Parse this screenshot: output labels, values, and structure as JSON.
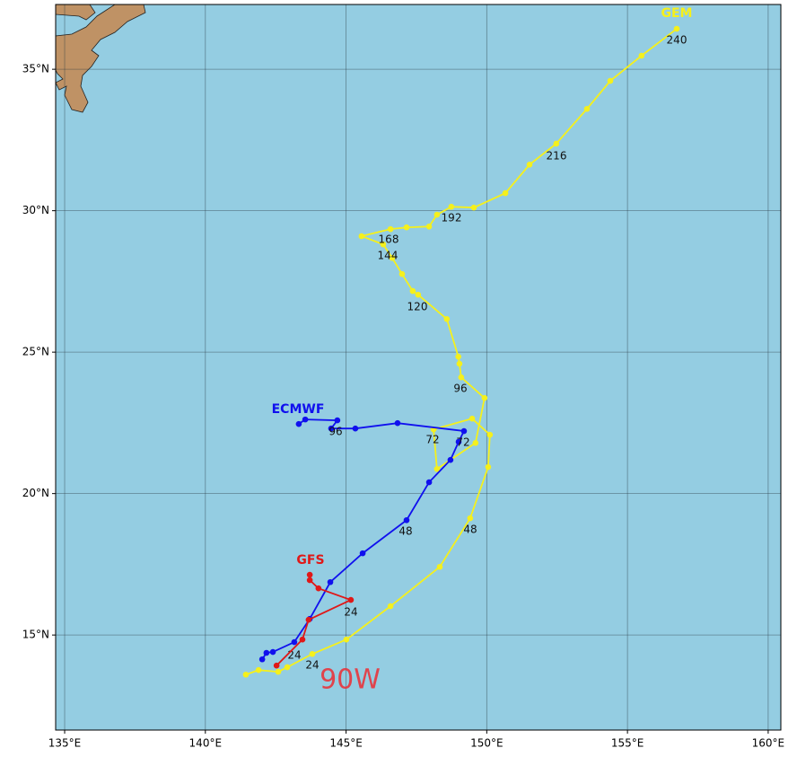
{
  "map": {
    "lon_range": [
      134.68,
      160.45
    ],
    "lat_range": [
      11.64,
      37.29
    ],
    "lon_ticks": [
      {
        "value": 135,
        "label": "135°E"
      },
      {
        "value": 140,
        "label": "140°E"
      },
      {
        "value": 145,
        "label": "145°E"
      },
      {
        "value": 150,
        "label": "150°E"
      },
      {
        "value": 155,
        "label": "155°E"
      },
      {
        "value": 160,
        "label": "160°E"
      }
    ],
    "lat_ticks": [
      {
        "value": 15,
        "label": "15°N"
      },
      {
        "value": 20,
        "label": "20°N"
      },
      {
        "value": 25,
        "label": "25°N"
      },
      {
        "value": 30,
        "label": "30°N"
      },
      {
        "value": 35,
        "label": "35°N"
      }
    ],
    "storm_label": "90W",
    "tracks": [
      {
        "name": "GEM",
        "color": "#f5f01c",
        "lon": [
          141.44,
          141.89,
          142.59,
          142.91,
          143.8,
          145.01,
          146.58,
          148.33,
          149.41,
          150.05,
          150.11,
          149.48,
          148.11,
          148.23,
          149.6,
          149.92,
          149.09,
          149.03,
          148.99,
          148.58,
          147.56,
          147.37,
          146.99,
          146.64,
          146.32,
          145.55,
          146.58,
          147.15,
          147.95,
          148.23,
          148.74,
          149.54,
          150.66,
          151.52,
          152.47,
          153.56,
          154.39,
          155.5,
          156.75
        ],
        "lat": [
          13.6,
          13.76,
          13.7,
          13.86,
          14.33,
          14.84,
          16.02,
          17.41,
          19.13,
          20.94,
          22.08,
          22.65,
          22.27,
          20.87,
          21.79,
          23.38,
          24.11,
          24.59,
          24.84,
          26.17,
          27.03,
          27.16,
          27.76,
          28.33,
          28.81,
          29.1,
          29.35,
          29.41,
          29.44,
          29.86,
          30.14,
          30.11,
          30.62,
          31.63,
          32.37,
          33.6,
          34.59,
          35.48,
          36.43
        ],
        "labels": [
          "240",
          "216",
          "192",
          "168",
          "144",
          "120",
          "96",
          "72",
          "48",
          "24"
        ]
      },
      {
        "name": "ECMWF",
        "color": "#1010ee",
        "lon": [
          142.02,
          142.17,
          142.4,
          143.16,
          143.71,
          144.44,
          145.59,
          147.15,
          147.95,
          148.71,
          149.0,
          149.19,
          146.83,
          145.33,
          144.47,
          144.69,
          143.55,
          143.32
        ],
        "lat": [
          14.14,
          14.37,
          14.4,
          14.75,
          15.57,
          16.87,
          17.89,
          19.06,
          20.4,
          21.19,
          21.83,
          22.21,
          22.49,
          22.3,
          22.3,
          22.59,
          22.62,
          22.46
        ],
        "labels": [
          "96",
          "72",
          "48",
          "24"
        ]
      },
      {
        "name": "GFS",
        "color": "#e01818",
        "lon": [
          142.53,
          143.45,
          143.67,
          145.17,
          144.02,
          143.71,
          143.71
        ],
        "lat": [
          13.92,
          14.84,
          15.54,
          16.24,
          16.65,
          16.94,
          17.13
        ],
        "labels": [
          "24"
        ]
      }
    ]
  }
}
